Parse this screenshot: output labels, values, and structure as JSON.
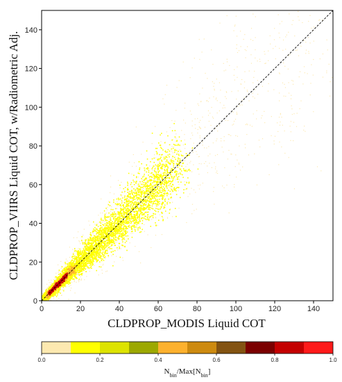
{
  "chart_data": {
    "type": "heatmap",
    "xlabel": "CLDPROP_MODIS Liquid COT",
    "ylabel": "CLDPROP_VIIRS Liquid COT, w/Radiometric Adj.",
    "xlim": [
      0,
      150
    ],
    "ylim": [
      0,
      150
    ],
    "x_ticks": [
      0,
      20,
      40,
      60,
      80,
      100,
      120,
      140
    ],
    "y_ticks": [
      0,
      20,
      40,
      60,
      80,
      100,
      120,
      140
    ],
    "grid": false,
    "reference_line": {
      "style": "dashed",
      "color": "#000000",
      "from": [
        0,
        0
      ],
      "to": [
        150,
        150
      ]
    },
    "density_regions": [
      {
        "level": 0.05,
        "x_range": [
          0,
          150
        ],
        "spread": "wide sparse scatter along diagonal"
      },
      {
        "level": 0.15,
        "x_range": [
          0,
          70
        ],
        "spread": "dense cloud along diagonal"
      },
      {
        "level": 0.45,
        "x_range": [
          3,
          17
        ],
        "spread": "narrow band along diagonal"
      },
      {
        "level": 0.85,
        "x_range": [
          4,
          13
        ],
        "spread": "core along diagonal"
      }
    ],
    "colorbar": {
      "title": "N_bin/Max[N_bin]",
      "title_main": "N",
      "title_sub1": "bin",
      "title_mid": "/Max[N",
      "title_sub2": "bin",
      "title_end": "]",
      "range": [
        0,
        1
      ],
      "tick_labels": [
        "0.0",
        "0.2",
        "0.4",
        "0.6",
        "0.8",
        "1.0"
      ],
      "ticks": [
        0,
        0.2,
        0.4,
        0.6,
        0.8,
        1.0
      ],
      "bins": [
        {
          "from": 0.0,
          "to": 0.1,
          "color": "#fde9b0"
        },
        {
          "from": 0.1,
          "to": 0.2,
          "color": "#ffff00"
        },
        {
          "from": 0.2,
          "to": 0.3,
          "color": "#dde300"
        },
        {
          "from": 0.3,
          "to": 0.4,
          "color": "#9ca800"
        },
        {
          "from": 0.4,
          "to": 0.5,
          "color": "#fdb12e"
        },
        {
          "from": 0.5,
          "to": 0.6,
          "color": "#cd8a10"
        },
        {
          "from": 0.6,
          "to": 0.7,
          "color": "#835312"
        },
        {
          "from": 0.7,
          "to": 0.8,
          "color": "#7b0000"
        },
        {
          "from": 0.8,
          "to": 0.9,
          "color": "#c40000"
        },
        {
          "from": 0.9,
          "to": 1.0,
          "color": "#ff1a1a"
        }
      ]
    }
  }
}
